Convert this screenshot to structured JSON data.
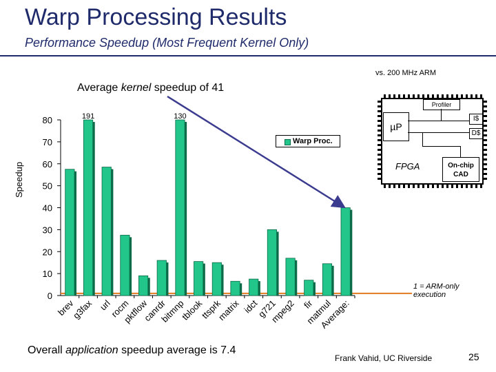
{
  "slide": {
    "title": "Warp Processing Results",
    "subtitle": "Performance Speedup (Most Frequent Kernel Only)",
    "vs_note": "vs. 200 MHz ARM",
    "avg_kernel_prefix": "Average ",
    "avg_kernel_italic": "kernel",
    "avg_kernel_suffix": " speedup of 41",
    "overall_prefix": "Overall ",
    "overall_italic": "application",
    "overall_suffix": " speedup average is 7.4",
    "author": "Frank Vahid, UC Riverside",
    "page_number": "25",
    "baseline_note_line1": "1 = ARM-only",
    "baseline_note_line2": "execution"
  },
  "diagram": {
    "profiler": "Profiler",
    "up": "µP",
    "icache": "I$",
    "dcache": "D$",
    "fpga": "FPGA",
    "cad_line1": "On-chip",
    "cad_line2": "CAD"
  },
  "colors": {
    "bar": "#22c58a",
    "bar_edge": "#0c6b48",
    "arrow": "#3b3b8f",
    "baseline": "#e07b20",
    "title": "#1f2a6b"
  },
  "chart_data": {
    "type": "bar",
    "title": "",
    "xlabel": "",
    "ylabel": "Speedup",
    "ylim": [
      0,
      80
    ],
    "yticks": [
      0,
      10,
      20,
      30,
      40,
      50,
      60,
      70,
      80
    ],
    "legend": "Warp Proc.",
    "categories": [
      "brev",
      "g3fax",
      "url",
      "rocm",
      "pktflow",
      "canrdr",
      "bitmnp",
      "tblook",
      "ttsprk",
      "matrix",
      "idct",
      "g721",
      "mpeg2",
      "fir",
      "matmul",
      "Average:"
    ],
    "values": [
      57.5,
      80,
      58.5,
      27.5,
      9,
      16,
      80,
      15.5,
      15,
      6.5,
      7.5,
      30,
      17,
      7,
      14.5,
      40
    ],
    "clipped_labels": [
      {
        "index": 1,
        "label": "191"
      },
      {
        "index": 6,
        "label": "130"
      }
    ]
  }
}
